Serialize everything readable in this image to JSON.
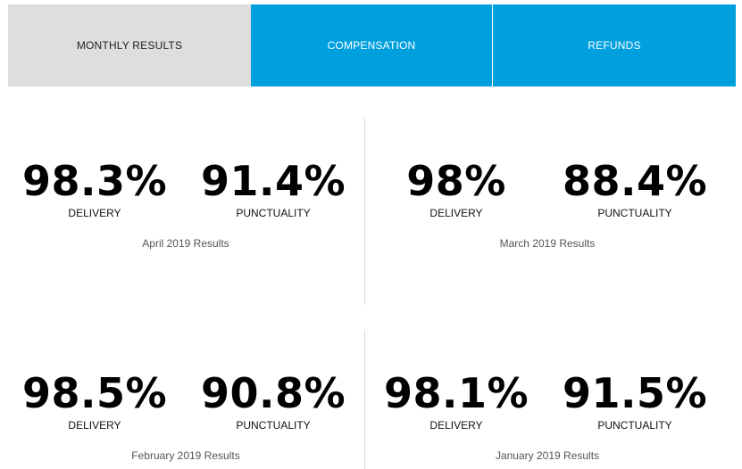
{
  "tabs": [
    {
      "label": "MONTHLY RESULTS",
      "active": true
    },
    {
      "label": "COMPENSATION",
      "active": false
    },
    {
      "label": "REFUNDS",
      "active": false
    }
  ],
  "colors": {
    "accent": "#00a0de",
    "active_tab": "#dedede"
  },
  "results": [
    {
      "delivery": "98.3%",
      "punctuality": "91.4%",
      "delivery_label": "DELIVERY",
      "punctuality_label": "PUNCTUALITY",
      "caption": "April 2019 Results"
    },
    {
      "delivery": "98%",
      "punctuality": "88.4%",
      "delivery_label": "DELIVERY",
      "punctuality_label": "PUNCTUALITY",
      "caption": "March 2019 Results"
    },
    {
      "delivery": "98.5%",
      "punctuality": "90.8%",
      "delivery_label": "DELIVERY",
      "punctuality_label": "PUNCTUALITY",
      "caption": "February 2019 Results"
    },
    {
      "delivery": "98.1%",
      "punctuality": "91.5%",
      "delivery_label": "DELIVERY",
      "punctuality_label": "PUNCTUALITY",
      "caption": "January 2019 Results"
    }
  ]
}
